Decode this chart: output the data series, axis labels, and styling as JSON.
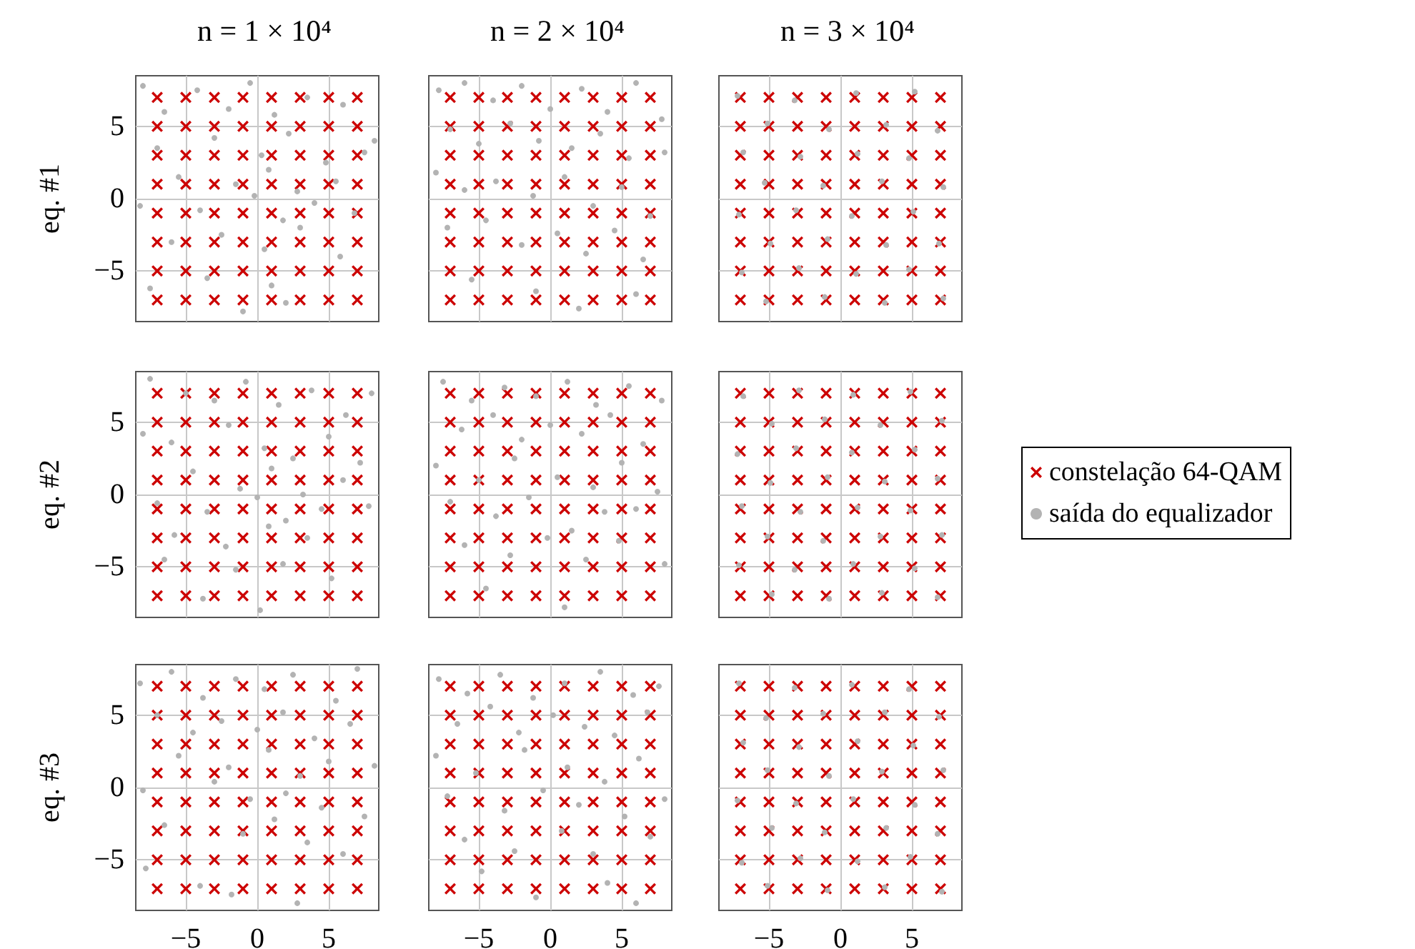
{
  "chart_data": [
    {
      "type": "scatter",
      "title": "n = 1 × 10⁴",
      "ylabel": "eq. #1",
      "tick_labels": "y",
      "xlim": [
        -8.5,
        8.5
      ],
      "ylim": [
        -8.5,
        8.5
      ],
      "xticks": [
        -5,
        0,
        5
      ],
      "yticks": [
        -5,
        0,
        5
      ],
      "grid": true,
      "series": [
        {
          "color": "#b3b3b3",
          "marker": "circle",
          "x": [
            -8,
            -6.5,
            -4.2,
            -2,
            -0.5,
            1.2,
            3.5,
            6,
            8.2,
            -7,
            -3,
            0.3,
            2.2,
            4.8,
            7.5,
            -5.5,
            -1.5,
            0.8,
            2.8,
            5.5,
            -8.2,
            -4,
            -0.2,
            1.8,
            4,
            6.8,
            -6,
            -2.5,
            0.5,
            3,
            5.8,
            -3.5,
            1,
            -1,
            2,
            -7.5
          ],
          "values": [
            7.8,
            6,
            7.5,
            6.2,
            8,
            5.8,
            7,
            6.5,
            4,
            3.5,
            4.2,
            3,
            4.5,
            2.5,
            3.2,
            1.5,
            1,
            2,
            0.5,
            1.2,
            -0.5,
            -0.8,
            0.2,
            -1.5,
            -0.3,
            -1,
            -3,
            -2.5,
            -3.5,
            -2,
            -4,
            -5.5,
            -6,
            -7.8,
            -7.2,
            -6.2
          ]
        },
        {
          "color": "#cc0000",
          "marker": "cross",
          "x": [
            -7,
            -5,
            -3,
            -1,
            1,
            3,
            5,
            7,
            -7,
            -5,
            -3,
            -1,
            1,
            3,
            5,
            7,
            -7,
            -5,
            -3,
            -1,
            1,
            3,
            5,
            7,
            -7,
            -5,
            -3,
            -1,
            1,
            3,
            5,
            7,
            -7,
            -5,
            -3,
            -1,
            1,
            3,
            5,
            7,
            -7,
            -5,
            -3,
            -1,
            1,
            3,
            5,
            7,
            -7,
            -5,
            -3,
            -1,
            1,
            3,
            5,
            7,
            -7,
            -5,
            -3,
            -1,
            1,
            3,
            5,
            7
          ],
          "values": [
            7,
            7,
            7,
            7,
            7,
            7,
            7,
            7,
            5,
            5,
            5,
            5,
            5,
            5,
            5,
            5,
            3,
            3,
            3,
            3,
            3,
            3,
            3,
            3,
            1,
            1,
            1,
            1,
            1,
            1,
            1,
            1,
            -1,
            -1,
            -1,
            -1,
            -1,
            -1,
            -1,
            -1,
            -3,
            -3,
            -3,
            -3,
            -3,
            -3,
            -3,
            -3,
            -5,
            -5,
            -5,
            -5,
            -5,
            -5,
            -5,
            -5,
            -7,
            -7,
            -7,
            -7,
            -7,
            -7,
            -7,
            -7
          ]
        }
      ]
    },
    {
      "type": "scatter",
      "title": "n = 2 × 10⁴",
      "tick_labels": false,
      "xlim": [
        -8.5,
        8.5
      ],
      "ylim": [
        -8.5,
        8.5
      ],
      "xticks": [
        -5,
        0,
        5
      ],
      "yticks": [
        -5,
        0,
        5
      ],
      "grid": true,
      "series": [
        {
          "color": "#b3b3b3",
          "marker": "circle",
          "x": [
            -7.8,
            -6,
            -4,
            -2,
            0,
            2.2,
            4,
            6,
            7.8,
            -7,
            -5,
            -2.8,
            -0.8,
            1.5,
            3.5,
            5.5,
            8,
            -8,
            -6,
            -3.8,
            -1.2,
            1,
            3,
            5,
            7,
            -7.2,
            -4.5,
            -2,
            0.5,
            2.5,
            4.5,
            6.5,
            -5.5,
            -1,
            2,
            6
          ],
          "values": [
            7.5,
            8,
            6.8,
            7.8,
            6.2,
            7.6,
            6,
            8,
            5.5,
            4.8,
            3.8,
            5.2,
            4,
            3.5,
            4.5,
            2.8,
            3.2,
            1.8,
            0.6,
            1.2,
            0.2,
            1.5,
            -0.5,
            0.8,
            -1.2,
            -2,
            -1.5,
            -3.2,
            -2.4,
            -3.8,
            -2.2,
            -4.2,
            -5.6,
            -6.4,
            -7.6,
            -6.6
          ]
        },
        {
          "color": "#cc0000",
          "marker": "cross",
          "x": [
            -7,
            -5,
            -3,
            -1,
            1,
            3,
            5,
            7,
            -7,
            -5,
            -3,
            -1,
            1,
            3,
            5,
            7,
            -7,
            -5,
            -3,
            -1,
            1,
            3,
            5,
            7,
            -7,
            -5,
            -3,
            -1,
            1,
            3,
            5,
            7,
            -7,
            -5,
            -3,
            -1,
            1,
            3,
            5,
            7,
            -7,
            -5,
            -3,
            -1,
            1,
            3,
            5,
            7,
            -7,
            -5,
            -3,
            -1,
            1,
            3,
            5,
            7,
            -7,
            -5,
            -3,
            -1,
            1,
            3,
            5,
            7
          ],
          "values": [
            7,
            7,
            7,
            7,
            7,
            7,
            7,
            7,
            5,
            5,
            5,
            5,
            5,
            5,
            5,
            5,
            3,
            3,
            3,
            3,
            3,
            3,
            3,
            3,
            1,
            1,
            1,
            1,
            1,
            1,
            1,
            1,
            -1,
            -1,
            -1,
            -1,
            -1,
            -1,
            -1,
            -1,
            -3,
            -3,
            -3,
            -3,
            -3,
            -3,
            -3,
            -3,
            -5,
            -5,
            -5,
            -5,
            -5,
            -5,
            -5,
            -5,
            -7,
            -7,
            -7,
            -7,
            -7,
            -7,
            -7,
            -7
          ]
        }
      ]
    },
    {
      "type": "scatter",
      "title": "n = 3 × 10⁴",
      "tick_labels": false,
      "xlim": [
        -8.5,
        8.5
      ],
      "ylim": [
        -8.5,
        8.5
      ],
      "xticks": [
        -5,
        0,
        5
      ],
      "yticks": [
        -5,
        0,
        5
      ],
      "grid": true,
      "series": [
        {
          "color": "#b3b3b3",
          "marker": "circle",
          "x": [
            -7.2,
            -3.2,
            1.1,
            5.2,
            -5.1,
            -0.8,
            3.2,
            6.8,
            -6.8,
            -2.8,
            1.2,
            4.8,
            -5.3,
            -1.2,
            2.9,
            7.2,
            -7.1,
            -3.1,
            0.8,
            5.1,
            -4.9,
            -0.9,
            3.2,
            6.9,
            -6.9,
            -2.9,
            1.1,
            4.8,
            -5.2,
            -1.1,
            3.1,
            7.2
          ],
          "values": [
            7.1,
            6.8,
            7.3,
            7.4,
            5.2,
            4.8,
            5.1,
            4.7,
            3.2,
            2.9,
            3.1,
            2.8,
            1.1,
            0.9,
            1.2,
            0.8,
            -1.1,
            -0.8,
            -1.2,
            -0.9,
            -3.1,
            -2.8,
            -3.2,
            -3.1,
            -5.1,
            -4.8,
            -5.2,
            -4.9,
            -7.1,
            -6.8,
            -7.2,
            -6.9
          ]
        },
        {
          "color": "#cc0000",
          "marker": "cross",
          "x": [
            -7,
            -5,
            -3,
            -1,
            1,
            3,
            5,
            7,
            -7,
            -5,
            -3,
            -1,
            1,
            3,
            5,
            7,
            -7,
            -5,
            -3,
            -1,
            1,
            3,
            5,
            7,
            -7,
            -5,
            -3,
            -1,
            1,
            3,
            5,
            7,
            -7,
            -5,
            -3,
            -1,
            1,
            3,
            5,
            7,
            -7,
            -5,
            -3,
            -1,
            1,
            3,
            5,
            7,
            -7,
            -5,
            -3,
            -1,
            1,
            3,
            5,
            7,
            -7,
            -5,
            -3,
            -1,
            1,
            3,
            5,
            7
          ],
          "values": [
            7,
            7,
            7,
            7,
            7,
            7,
            7,
            7,
            5,
            5,
            5,
            5,
            5,
            5,
            5,
            5,
            3,
            3,
            3,
            3,
            3,
            3,
            3,
            3,
            1,
            1,
            1,
            1,
            1,
            1,
            1,
            1,
            -1,
            -1,
            -1,
            -1,
            -1,
            -1,
            -1,
            -1,
            -3,
            -3,
            -3,
            -3,
            -3,
            -3,
            -3,
            -3,
            -5,
            -5,
            -5,
            -5,
            -5,
            -5,
            -5,
            -5,
            -7,
            -7,
            -7,
            -7,
            -7,
            -7,
            -7,
            -7
          ]
        }
      ]
    },
    {
      "type": "scatter",
      "ylabel": "eq. #2",
      "tick_labels": "y",
      "xlim": [
        -8.5,
        8.5
      ],
      "ylim": [
        -8.5,
        8.5
      ],
      "xticks": [
        -5,
        0,
        5
      ],
      "yticks": [
        -5,
        0,
        5
      ],
      "grid": true,
      "series": [
        {
          "color": "#b3b3b3",
          "marker": "circle",
          "x": [
            -7.5,
            -5,
            -3,
            -0.8,
            1.5,
            3.8,
            6.2,
            8,
            -8,
            -6,
            -2,
            0.5,
            2.5,
            5,
            7.2,
            -4.5,
            -1.2,
            1,
            3.2,
            6,
            -7,
            -3.5,
            0,
            2,
            4.5,
            7.8,
            -5.8,
            -2.2,
            0.8,
            3.5,
            -6.5,
            -1.5,
            1.8,
            5.2,
            -3.8,
            0.2
          ],
          "values": [
            8,
            7,
            6.5,
            7.8,
            6.2,
            7.2,
            5.5,
            7,
            4.2,
            3.6,
            4.8,
            3.2,
            2.5,
            4,
            2.2,
            1.6,
            0.4,
            1.8,
            0,
            1,
            -0.6,
            -1.2,
            -0.2,
            -1.8,
            -1,
            -0.8,
            -2.8,
            -3.6,
            -2.2,
            -3,
            -4.5,
            -5.2,
            -4.8,
            -5.8,
            -7.2,
            -8
          ]
        },
        {
          "color": "#cc0000",
          "marker": "cross",
          "x": [
            -7,
            -5,
            -3,
            -1,
            1,
            3,
            5,
            7,
            -7,
            -5,
            -3,
            -1,
            1,
            3,
            5,
            7,
            -7,
            -5,
            -3,
            -1,
            1,
            3,
            5,
            7,
            -7,
            -5,
            -3,
            -1,
            1,
            3,
            5,
            7,
            -7,
            -5,
            -3,
            -1,
            1,
            3,
            5,
            7,
            -7,
            -5,
            -3,
            -1,
            1,
            3,
            5,
            7,
            -7,
            -5,
            -3,
            -1,
            1,
            3,
            5,
            7,
            -7,
            -5,
            -3,
            -1,
            1,
            3,
            5,
            7
          ],
          "values": [
            7,
            7,
            7,
            7,
            7,
            7,
            7,
            7,
            5,
            5,
            5,
            5,
            5,
            5,
            5,
            5,
            3,
            3,
            3,
            3,
            3,
            3,
            3,
            3,
            1,
            1,
            1,
            1,
            1,
            1,
            1,
            1,
            -1,
            -1,
            -1,
            -1,
            -1,
            -1,
            -1,
            -1,
            -3,
            -3,
            -3,
            -3,
            -3,
            -3,
            -3,
            -3,
            -5,
            -5,
            -5,
            -5,
            -5,
            -5,
            -5,
            -5,
            -7,
            -7,
            -7,
            -7,
            -7,
            -7,
            -7,
            -7
          ]
        }
      ]
    },
    {
      "type": "scatter",
      "tick_labels": false,
      "xlim": [
        -8.5,
        8.5
      ],
      "ylim": [
        -8.5,
        8.5
      ],
      "xticks": [
        -5,
        0,
        5
      ],
      "yticks": [
        -5,
        0,
        5
      ],
      "grid": true,
      "series": [
        {
          "color": "#b3b3b3",
          "marker": "circle",
          "x": [
            -7.5,
            -5.5,
            -3.2,
            -1,
            1.2,
            3.2,
            5.5,
            7.8,
            -6.2,
            -4,
            -2,
            0,
            2.2,
            4.2,
            6.5,
            -8,
            -5,
            -2.5,
            0.5,
            3,
            5,
            7.5,
            -7,
            -3.8,
            -1.5,
            1.5,
            3.8,
            6,
            -6,
            -2.8,
            -0.2,
            2.5,
            4.8,
            8,
            -4.5,
            1
          ],
          "values": [
            7.8,
            6.5,
            7.4,
            6.8,
            7.8,
            6.2,
            7.5,
            6.5,
            4.5,
            5.5,
            3.8,
            4.8,
            4.2,
            5.5,
            3.5,
            2,
            1,
            2.5,
            1.2,
            0.5,
            2.2,
            0.2,
            -0.5,
            -1.5,
            -0.2,
            -2.5,
            -1.2,
            -1,
            -3.5,
            -4.2,
            -3,
            -4.5,
            -3.2,
            -4.8,
            -6.5,
            -7.8
          ]
        },
        {
          "color": "#cc0000",
          "marker": "cross",
          "x": [
            -7,
            -5,
            -3,
            -1,
            1,
            3,
            5,
            7,
            -7,
            -5,
            -3,
            -1,
            1,
            3,
            5,
            7,
            -7,
            -5,
            -3,
            -1,
            1,
            3,
            5,
            7,
            -7,
            -5,
            -3,
            -1,
            1,
            3,
            5,
            7,
            -7,
            -5,
            -3,
            -1,
            1,
            3,
            5,
            7,
            -7,
            -5,
            -3,
            -1,
            1,
            3,
            5,
            7,
            -7,
            -5,
            -3,
            -1,
            1,
            3,
            5,
            7,
            -7,
            -5,
            -3,
            -1,
            1,
            3,
            5,
            7
          ],
          "values": [
            7,
            7,
            7,
            7,
            7,
            7,
            7,
            7,
            5,
            5,
            5,
            5,
            5,
            5,
            5,
            5,
            3,
            3,
            3,
            3,
            3,
            3,
            3,
            3,
            1,
            1,
            1,
            1,
            1,
            1,
            1,
            1,
            -1,
            -1,
            -1,
            -1,
            -1,
            -1,
            -1,
            -1,
            -3,
            -3,
            -3,
            -3,
            -3,
            -3,
            -3,
            -3,
            -5,
            -5,
            -5,
            -5,
            -5,
            -5,
            -5,
            -5,
            -7,
            -7,
            -7,
            -7,
            -7,
            -7,
            -7,
            -7
          ]
        }
      ]
    },
    {
      "type": "scatter",
      "tick_labels": false,
      "legend": "right",
      "xlim": [
        -8.5,
        8.5
      ],
      "ylim": [
        -8.5,
        8.5
      ],
      "xticks": [
        -5,
        0,
        5
      ],
      "yticks": [
        -5,
        0,
        5
      ],
      "grid": true,
      "series": [
        {
          "name": "saída do equalizador",
          "color": "#b3b3b3",
          "marker": "circle",
          "x": [
            -6.8,
            -2.9,
            0.9,
            4.9,
            -4.8,
            -1.1,
            2.8,
            7.1,
            -7.2,
            -3.1,
            0.8,
            5.2,
            -4.9,
            -0.9,
            3.1,
            6.8,
            -6.9,
            -2.8,
            1.2,
            4.9,
            -5.1,
            -1.2,
            2.8,
            7.1,
            -7.1,
            -3.2,
            0.9,
            5.2,
            -4.8,
            -0.8,
            2.9,
            6.8
          ],
          "values": [
            6.8,
            7.2,
            6.9,
            7.1,
            4.9,
            5.2,
            4.8,
            5.1,
            2.8,
            3.2,
            2.9,
            3.1,
            0.8,
            1.2,
            0.9,
            1.1,
            -0.8,
            -1.2,
            -0.9,
            -1.1,
            -2.9,
            -3.2,
            -2.9,
            -2.8,
            -4.9,
            -5.2,
            -4.8,
            -5.1,
            -6.9,
            -7.2,
            -6.8,
            -7.1
          ]
        },
        {
          "name": "constelação 64-QAM",
          "color": "#cc0000",
          "marker": "cross",
          "x": [
            -7,
            -5,
            -3,
            -1,
            1,
            3,
            5,
            7,
            -7,
            -5,
            -3,
            -1,
            1,
            3,
            5,
            7,
            -7,
            -5,
            -3,
            -1,
            1,
            3,
            5,
            7,
            -7,
            -5,
            -3,
            -1,
            1,
            3,
            5,
            7,
            -7,
            -5,
            -3,
            -1,
            1,
            3,
            5,
            7,
            -7,
            -5,
            -3,
            -1,
            1,
            3,
            5,
            7,
            -7,
            -5,
            -3,
            -1,
            1,
            3,
            5,
            7,
            -7,
            -5,
            -3,
            -1,
            1,
            3,
            5,
            7
          ],
          "values": [
            7,
            7,
            7,
            7,
            7,
            7,
            7,
            7,
            5,
            5,
            5,
            5,
            5,
            5,
            5,
            5,
            3,
            3,
            3,
            3,
            3,
            3,
            3,
            3,
            1,
            1,
            1,
            1,
            1,
            1,
            1,
            1,
            -1,
            -1,
            -1,
            -1,
            -1,
            -1,
            -1,
            -1,
            -3,
            -3,
            -3,
            -3,
            -3,
            -3,
            -3,
            -3,
            -5,
            -5,
            -5,
            -5,
            -5,
            -5,
            -5,
            -5,
            -7,
            -7,
            -7,
            -7,
            -7,
            -7,
            -7,
            -7
          ]
        }
      ]
    },
    {
      "type": "scatter",
      "ylabel": "eq. #3",
      "xlim": [
        -8.5,
        8.5
      ],
      "ylim": [
        -8.5,
        8.5
      ],
      "xticks": [
        -5,
        0,
        5
      ],
      "yticks": [
        -5,
        0,
        5
      ],
      "grid": true,
      "series": [
        {
          "color": "#b3b3b3",
          "marker": "circle",
          "x": [
            -8.2,
            -6,
            -3.8,
            -1.5,
            0.5,
            2.5,
            5.5,
            7,
            -7,
            -4.5,
            -2.5,
            0,
            1.8,
            4,
            6.5,
            8.2,
            -5.5,
            -2,
            0.8,
            3,
            5,
            -8,
            -3,
            -0.5,
            2,
            4.5,
            7.5,
            -6.5,
            -1,
            1.2,
            3.5,
            6,
            -7.8,
            -4,
            -1.8,
            2.8
          ],
          "values": [
            7.2,
            8,
            6.2,
            7.5,
            6.8,
            7.8,
            6,
            8.2,
            5,
            3.8,
            4.6,
            4,
            5.2,
            3.4,
            4.4,
            1.5,
            2.2,
            1.4,
            2.6,
            0.8,
            1.8,
            -0.2,
            0.4,
            -0.8,
            -0.4,
            -1.4,
            -2,
            -2.6,
            -3.2,
            -2.2,
            -3.8,
            -4.6,
            -5.6,
            -6.8,
            -7.4,
            -8
          ]
        },
        {
          "color": "#cc0000",
          "marker": "cross",
          "x": [
            -7,
            -5,
            -3,
            -1,
            1,
            3,
            5,
            7,
            -7,
            -5,
            -3,
            -1,
            1,
            3,
            5,
            7,
            -7,
            -5,
            -3,
            -1,
            1,
            3,
            5,
            7,
            -7,
            -5,
            -3,
            -1,
            1,
            3,
            5,
            7,
            -7,
            -5,
            -3,
            -1,
            1,
            3,
            5,
            7,
            -7,
            -5,
            -3,
            -1,
            1,
            3,
            5,
            7,
            -7,
            -5,
            -3,
            -1,
            1,
            3,
            5,
            7,
            -7,
            -5,
            -3,
            -1,
            1,
            3,
            5,
            7
          ],
          "values": [
            7,
            7,
            7,
            7,
            7,
            7,
            7,
            7,
            5,
            5,
            5,
            5,
            5,
            5,
            5,
            5,
            3,
            3,
            3,
            3,
            3,
            3,
            3,
            3,
            1,
            1,
            1,
            1,
            1,
            1,
            1,
            1,
            -1,
            -1,
            -1,
            -1,
            -1,
            -1,
            -1,
            -1,
            -3,
            -3,
            -3,
            -3,
            -3,
            -3,
            -3,
            -3,
            -5,
            -5,
            -5,
            -5,
            -5,
            -5,
            -5,
            -5,
            -7,
            -7,
            -7,
            -7,
            -7,
            -7,
            -7,
            -7
          ]
        }
      ]
    },
    {
      "type": "scatter",
      "tick_labels": "x",
      "xlim": [
        -8.5,
        8.5
      ],
      "ylim": [
        -8.5,
        8.5
      ],
      "xticks": [
        -5,
        0,
        5
      ],
      "yticks": [
        -5,
        0,
        5
      ],
      "grid": true,
      "series": [
        {
          "color": "#b3b3b3",
          "marker": "circle",
          "x": [
            -7.8,
            -5.8,
            -3.5,
            -1.2,
            1,
            3.5,
            5.8,
            7.6,
            -6.5,
            -4.2,
            -2.2,
            0.2,
            2.4,
            4.5,
            6.8,
            -8,
            -5.2,
            -1.8,
            1.2,
            3.8,
            6.2,
            -7.2,
            -3.2,
            -0.5,
            2,
            5.2,
            8,
            -6,
            -2.5,
            0.8,
            3,
            7,
            -4.8,
            -1,
            4,
            6
          ],
          "values": [
            7.5,
            6.5,
            7.8,
            6.2,
            7.2,
            8,
            6.4,
            7,
            4.4,
            5.6,
            3.8,
            5,
            4.2,
            3.6,
            5.2,
            2.2,
            1,
            2.6,
            1.4,
            0.4,
            2,
            -0.6,
            -1.6,
            -0.2,
            -1.2,
            -2,
            -0.8,
            -3.6,
            -4.4,
            -3,
            -4.6,
            -3.4,
            -5.8,
            -7.6,
            -6.6,
            -8
          ]
        },
        {
          "color": "#cc0000",
          "marker": "cross",
          "x": [
            -7,
            -5,
            -3,
            -1,
            1,
            3,
            5,
            7,
            -7,
            -5,
            -3,
            -1,
            1,
            3,
            5,
            7,
            -7,
            -5,
            -3,
            -1,
            1,
            3,
            5,
            7,
            -7,
            -5,
            -3,
            -1,
            1,
            3,
            5,
            7,
            -7,
            -5,
            -3,
            -1,
            1,
            3,
            5,
            7,
            -7,
            -5,
            -3,
            -1,
            1,
            3,
            5,
            7,
            -7,
            -5,
            -3,
            -1,
            1,
            3,
            5,
            7,
            -7,
            -5,
            -3,
            -1,
            1,
            3,
            5,
            7
          ],
          "values": [
            7,
            7,
            7,
            7,
            7,
            7,
            7,
            7,
            5,
            5,
            5,
            5,
            5,
            5,
            5,
            5,
            3,
            3,
            3,
            3,
            3,
            3,
            3,
            3,
            1,
            1,
            1,
            1,
            1,
            1,
            1,
            1,
            -1,
            -1,
            -1,
            -1,
            -1,
            -1,
            -1,
            -1,
            -3,
            -3,
            -3,
            -3,
            -3,
            -3,
            -3,
            -3,
            -5,
            -5,
            -5,
            -5,
            -5,
            -5,
            -5,
            -5,
            -7,
            -7,
            -7,
            -7,
            -7,
            -7,
            -7,
            -7
          ]
        }
      ]
    },
    {
      "type": "scatter",
      "tick_labels": "x",
      "xlim": [
        -8.5,
        8.5
      ],
      "ylim": [
        -8.5,
        8.5
      ],
      "xticks": [
        -5,
        0,
        5
      ],
      "yticks": [
        -5,
        0,
        5
      ],
      "grid": true,
      "series": [
        {
          "color": "#b3b3b3",
          "marker": "circle",
          "x": [
            -7.1,
            -3.2,
            0.8,
            4.8,
            -5.2,
            -1.2,
            3.1,
            6.9,
            -6.8,
            -2.9,
            1.2,
            5.1,
            -5.1,
            -0.8,
            2.9,
            7.2,
            -7.2,
            -3.1,
            0.9,
            5.2,
            -4.8,
            -1.1,
            3.2,
            6.8,
            -6.9,
            -2.8,
            1.2,
            4.9,
            -5.1,
            -0.9,
            3.1,
            7.1
          ],
          "values": [
            7.2,
            6.9,
            7.1,
            6.8,
            4.8,
            5.1,
            5.2,
            4.9,
            3.1,
            2.8,
            3.2,
            2.9,
            1.2,
            0.8,
            1.1,
            1.2,
            -0.9,
            -1.1,
            -0.8,
            -1.2,
            -2.8,
            -3.1,
            -2.8,
            -3.2,
            -5.2,
            -4.9,
            -5.1,
            -4.8,
            -6.8,
            -7.1,
            -6.9,
            -7.2
          ]
        },
        {
          "color": "#cc0000",
          "marker": "cross",
          "x": [
            -7,
            -5,
            -3,
            -1,
            1,
            3,
            5,
            7,
            -7,
            -5,
            -3,
            -1,
            1,
            3,
            5,
            7,
            -7,
            -5,
            -3,
            -1,
            1,
            3,
            5,
            7,
            -7,
            -5,
            -3,
            -1,
            1,
            3,
            5,
            7,
            -7,
            -5,
            -3,
            -1,
            1,
            3,
            5,
            7,
            -7,
            -5,
            -3,
            -1,
            1,
            3,
            5,
            7,
            -7,
            -5,
            -3,
            -1,
            1,
            3,
            5,
            7,
            -7,
            -5,
            -3,
            -1,
            1,
            3,
            5,
            7
          ],
          "values": [
            7,
            7,
            7,
            7,
            7,
            7,
            7,
            7,
            5,
            5,
            5,
            5,
            5,
            5,
            5,
            5,
            3,
            3,
            3,
            3,
            3,
            3,
            3,
            3,
            1,
            1,
            1,
            1,
            1,
            1,
            1,
            1,
            -1,
            -1,
            -1,
            -1,
            -1,
            -1,
            -1,
            -1,
            -3,
            -3,
            -3,
            -3,
            -3,
            -3,
            -3,
            -3,
            -5,
            -5,
            -5,
            -5,
            -5,
            -5,
            -5,
            -5,
            -7,
            -7,
            -7,
            -7,
            -7,
            -7,
            -7,
            -7
          ]
        }
      ]
    }
  ]
}
